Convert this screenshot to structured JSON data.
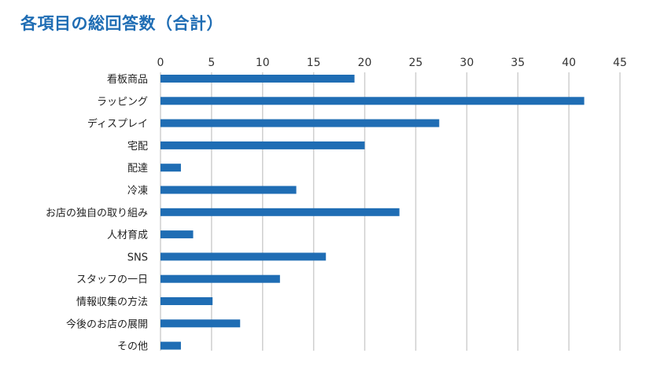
{
  "chart_data": {
    "type": "bar",
    "orientation": "horizontal",
    "title": "各項目の総回答数（合計）",
    "categories": [
      "看板商品",
      "ラッピング",
      "ディスプレイ",
      "宅配",
      "配達",
      "冷凍",
      "お店の独自の取り組み",
      "人材育成",
      "SNS",
      "スタッフの一日",
      "情報収集の方法",
      "今後のお店の展開",
      "その他"
    ],
    "values": [
      19,
      41.5,
      27.3,
      20,
      2,
      13.3,
      23.4,
      3.2,
      16.2,
      11.7,
      5.1,
      7.8,
      2
    ],
    "xlim": [
      0,
      45
    ],
    "xticks": [
      0,
      5,
      10,
      15,
      20,
      25,
      30,
      35,
      40,
      45
    ],
    "xtick_labels": [
      "0",
      "5",
      "10",
      "15",
      "20",
      "25",
      "30",
      "35",
      "40",
      "45"
    ],
    "x_axis_position": "top",
    "grid": true,
    "bar_color": "#1f6db4",
    "grid_color": "#cfcfcf",
    "title_color": "#1f6db4"
  }
}
